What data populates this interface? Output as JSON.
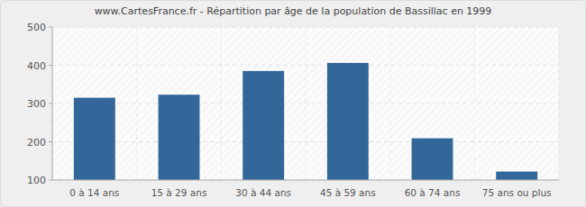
{
  "chart_data": {
    "type": "bar",
    "title": "www.CartesFrance.fr - Répartition par âge de la population de Bassillac en 1999",
    "categories": [
      "0 à 14 ans",
      "15 à 29 ans",
      "30 à 44 ans",
      "45 à 59 ans",
      "60 à 74 ans",
      "75 ans ou plus"
    ],
    "values": [
      315,
      323,
      385,
      406,
      209,
      122
    ],
    "color": "#336699",
    "ylim": [
      100,
      500
    ],
    "yticks": [
      100,
      200,
      300,
      400,
      500
    ],
    "grid": true
  }
}
